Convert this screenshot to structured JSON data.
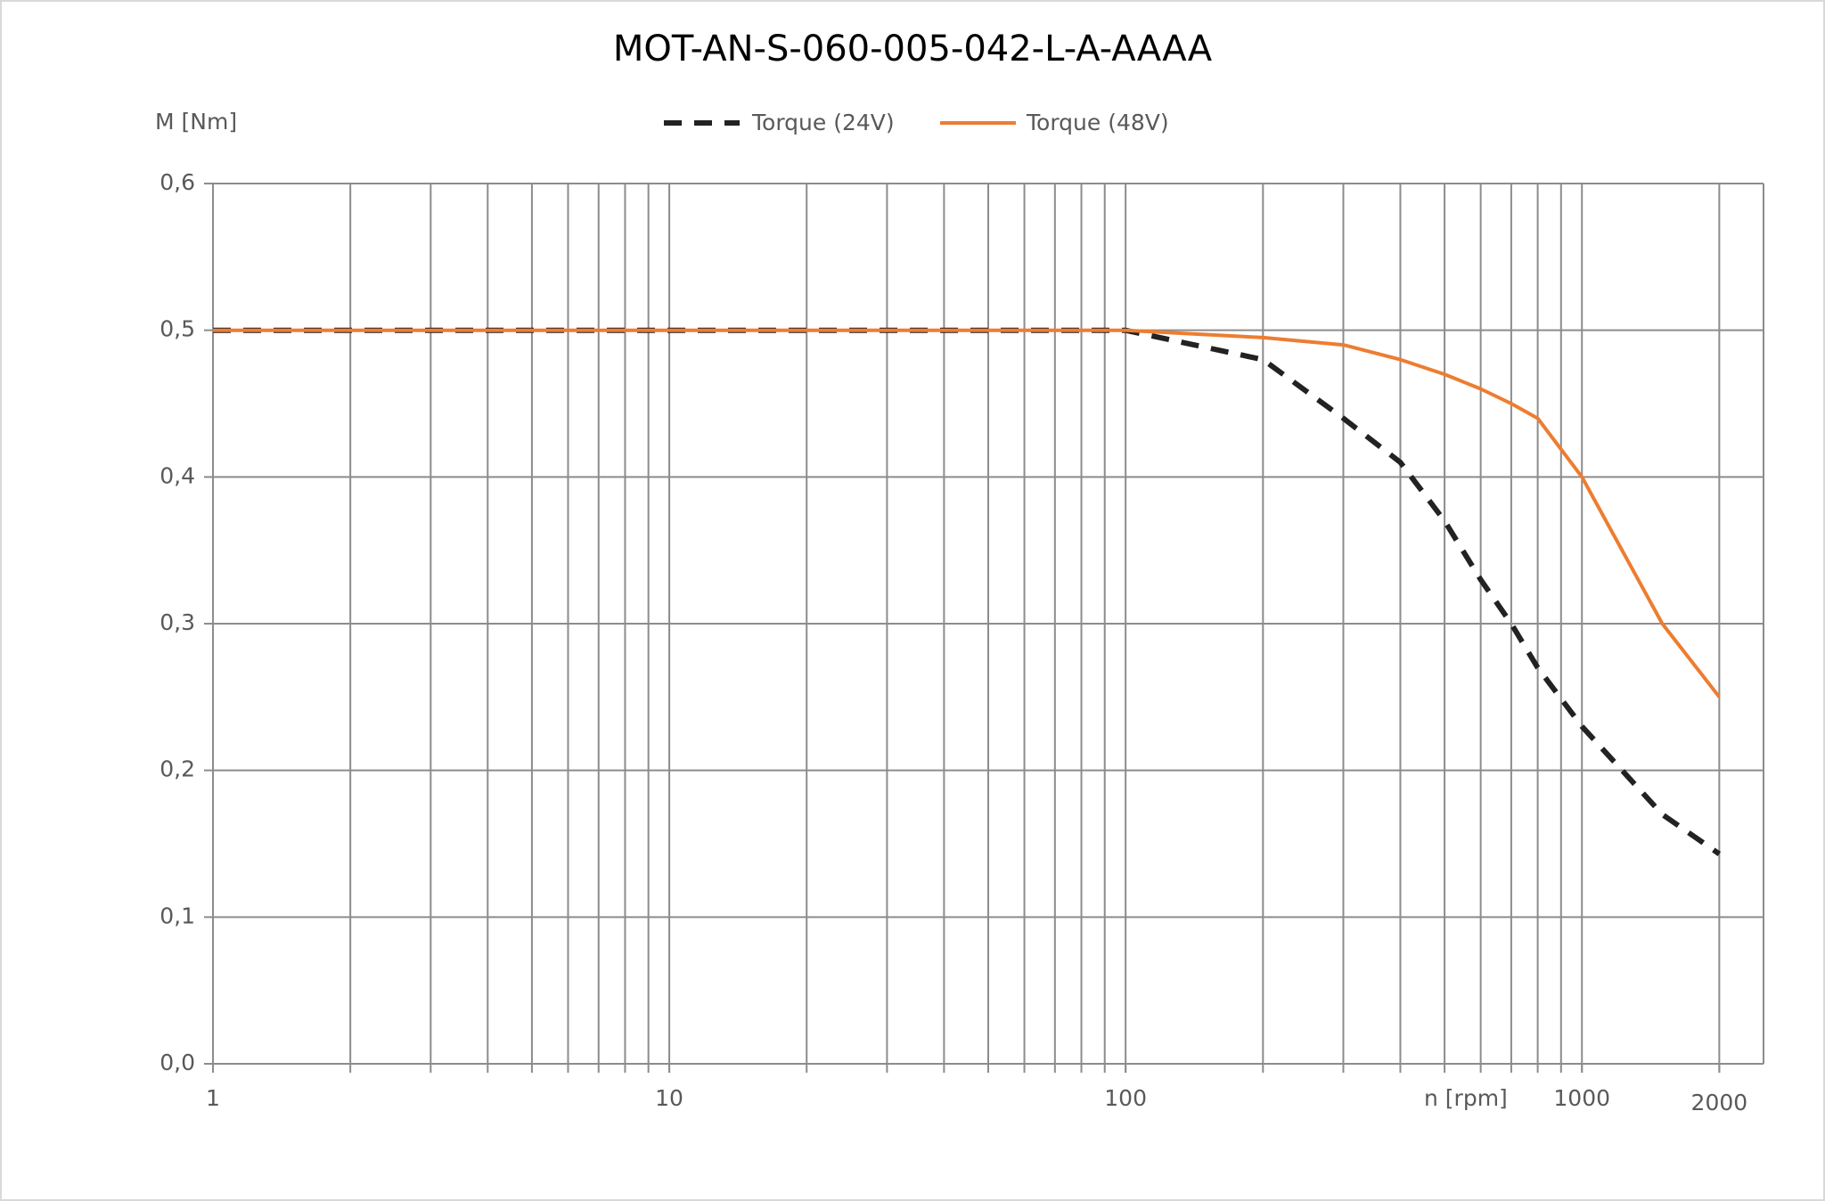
{
  "chart_data": {
    "type": "line",
    "title": "MOT-AN-S-060-005-042-L-A-AAAA",
    "y_label": "M [Nm]",
    "x_label": "n [rpm]",
    "x_log": true,
    "grid": true,
    "xlim": [
      1,
      2500
    ],
    "ylim": [
      0,
      0.6
    ],
    "xticks": [
      1,
      10,
      100,
      1000,
      2000
    ],
    "x_grid_lines": [
      1,
      2,
      3,
      4,
      5,
      6,
      7,
      8,
      9,
      10,
      20,
      30,
      40,
      50,
      60,
      70,
      80,
      90,
      100,
      200,
      300,
      400,
      500,
      600,
      700,
      800,
      900,
      1000,
      2000
    ],
    "yticks": [
      {
        "value": 0,
        "label": "0,0"
      },
      {
        "value": 0.1,
        "label": "0,1"
      },
      {
        "value": 0.2,
        "label": "0,2"
      },
      {
        "value": 0.3,
        "label": "0,3"
      },
      {
        "value": 0.4,
        "label": "0,4"
      },
      {
        "value": 0.5,
        "label": "0,5"
      },
      {
        "value": 0.6,
        "label": "0,6"
      }
    ],
    "x": [
      1,
      100,
      200,
      300,
      400,
      500,
      600,
      700,
      800,
      1000,
      1500,
      2000
    ],
    "series": [
      {
        "name": "Torque (24V)",
        "color": "#222222",
        "dashed": true,
        "values": [
          0.5,
          0.5,
          0.48,
          0.44,
          0.41,
          0.37,
          0.33,
          0.3,
          0.27,
          0.23,
          0.17,
          0.143
        ]
      },
      {
        "name": "Torque (48V)",
        "color": "#ed7d31",
        "dashed": false,
        "values": [
          0.5,
          0.5,
          0.495,
          0.49,
          0.48,
          0.47,
          0.46,
          0.45,
          0.44,
          0.4,
          0.3,
          0.25
        ]
      }
    ]
  }
}
